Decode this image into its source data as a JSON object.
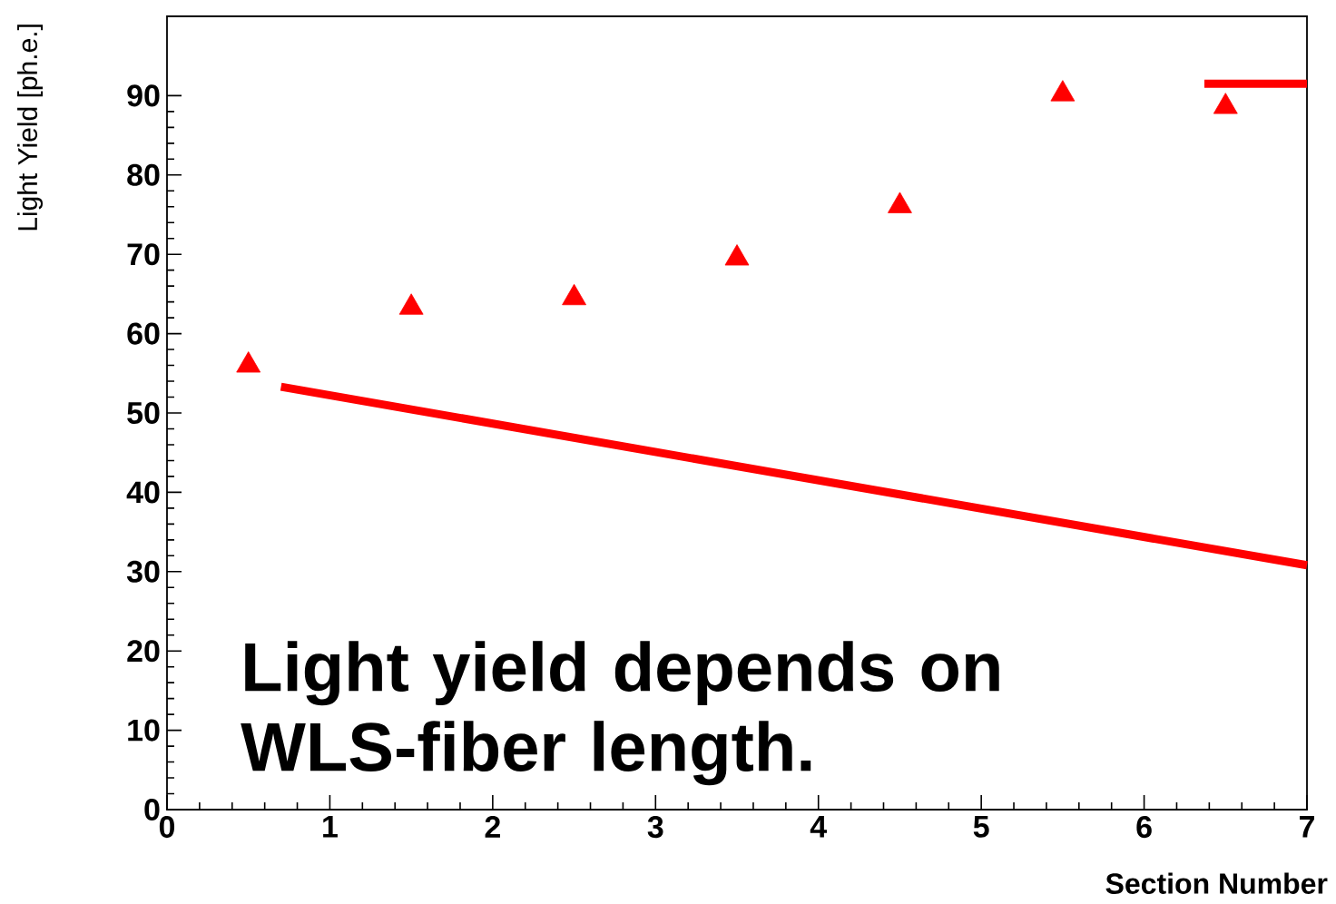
{
  "chart_data": {
    "type": "scatter",
    "xlabel": "Section Number",
    "ylabel": "Light Yield [ph.e.]",
    "xlim": [
      0,
      7
    ],
    "ylim": [
      0,
      100
    ],
    "xticks": [
      0,
      1,
      2,
      3,
      4,
      5,
      6,
      7
    ],
    "yticks": [
      0,
      10,
      20,
      30,
      40,
      50,
      60,
      70,
      80,
      90
    ],
    "series": [
      {
        "marker": "triangle",
        "color": "#ff0000",
        "x": [
          0.5,
          1.5,
          2.5,
          3.5,
          4.5,
          5.5,
          6.5
        ],
        "values": [
          56.0,
          63.3,
          64.5,
          69.5,
          76.1,
          90.2,
          88.6
        ]
      },
      {
        "type": "line",
        "line_style": "solid",
        "color": "#ff0000",
        "x": [
          0.7,
          7
        ],
        "values": [
          53.3,
          30.8
        ]
      },
      {
        "type": "line",
        "line_style": "solid",
        "color": "#ff0000",
        "x": [
          6.37,
          7
        ],
        "values": [
          91.5,
          91.5
        ]
      }
    ],
    "annotations": [
      "Light yield depends on WLS-fiber length."
    ]
  }
}
